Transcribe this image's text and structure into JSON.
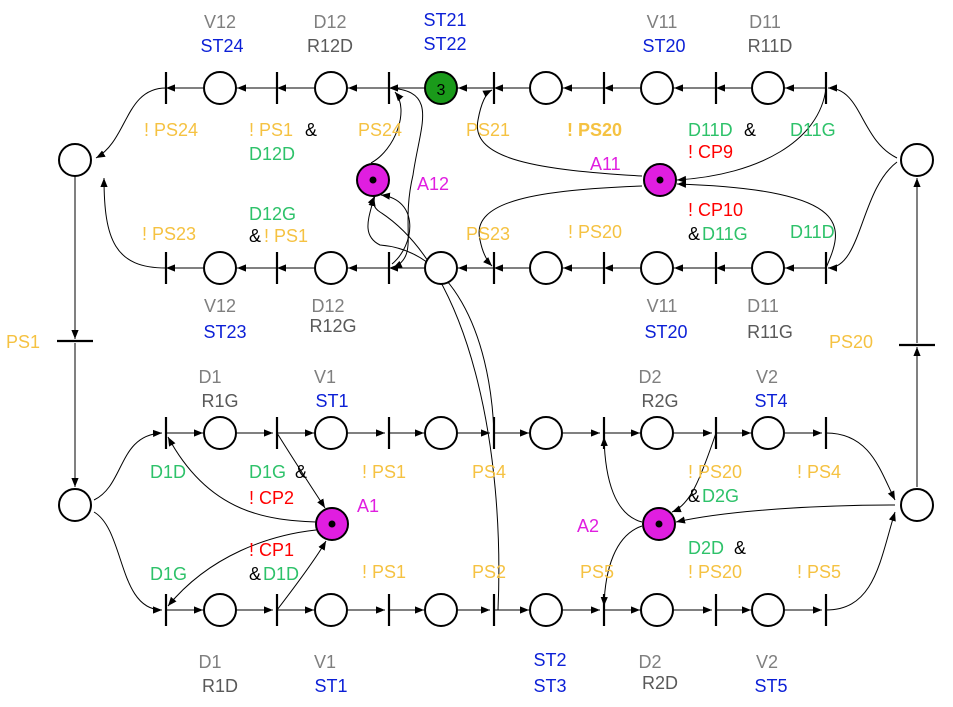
{
  "colors": {
    "gray": "#7f7f7f",
    "dark": "#595959",
    "blue": "#0b1fd6",
    "yellow": "#f5c242",
    "green": "#2ec26a",
    "red": "#ff0000",
    "magenta": "#e01ee0",
    "black": "#000000",
    "token_green": "#1a9a1a"
  },
  "token_count": "3",
  "labels": {
    "v12_top": "V12",
    "st24": "ST24",
    "d12_top": "D12",
    "r12d": "R12D",
    "st21": "ST21",
    "st22": "ST22",
    "v11_top": "V11",
    "st20_top": "ST20",
    "d11_top": "D11",
    "r11d": "R11D",
    "not_ps24": "! PS24",
    "not_ps1_a": "! PS1",
    "amp1": "&",
    "d12d": "D12D",
    "ps24": "PS24",
    "ps21": "PS21",
    "not_ps20_a": "! PS20",
    "d11d_a": "D11D",
    "amp2": "&",
    "d11g_a": "D11G",
    "not_cp9": "! CP9",
    "a12": "A12",
    "a11": "A11",
    "d12g": "D12G",
    "amp3": "&",
    "not_ps1_b": "! PS1",
    "not_ps23": "! PS23",
    "ps23": "PS23",
    "not_ps20_b": "! PS20",
    "not_cp10": "! CP10",
    "amp4": "&",
    "d11g_b": "D11G",
    "d11d_b": "D11D",
    "v12_bot": "V12",
    "st23": "ST23",
    "d12_bot": "D12",
    "r12g": "R12G",
    "v11_bot": "V11",
    "st20_mid": "ST20",
    "d11_bot": "D11",
    "r11g": "R11G",
    "ps1": "PS1",
    "ps20": "PS20",
    "d1_top": "D1",
    "r1g": "R1G",
    "v1_top": "V1",
    "st1_top": "ST1",
    "d2_top": "D2",
    "r2g": "R2G",
    "v2_top": "V2",
    "st4": "ST4",
    "d1d": "D1D",
    "d1g_a": "D1G",
    "amp5": "&",
    "not_cp2": "! CP2",
    "not_ps1_c": "! PS1",
    "ps4": "PS4",
    "not_ps20_c": "! PS20",
    "amp6": "&",
    "d2g": "D2G",
    "not_ps4": "! PS4",
    "a1": "A1",
    "a2": "A2",
    "not_cp1": "! CP1",
    "amp7": "&",
    "d1d_b": "D1D",
    "d1g_b": "D1G",
    "not_ps1_d": "! PS1",
    "ps2": "PS2",
    "ps5": "PS5",
    "d2d": "D2D",
    "amp8": "&",
    "not_ps20_d": "! PS20",
    "not_ps5": "! PS5",
    "d1_bot": "D1",
    "r1d": "R1D",
    "v1_bot": "V1",
    "st1_bot": "ST1",
    "st2": "ST2",
    "st3": "ST3",
    "d2_bot": "D2",
    "r2d": "R2D",
    "v2_bot": "V2",
    "st5": "ST5"
  }
}
